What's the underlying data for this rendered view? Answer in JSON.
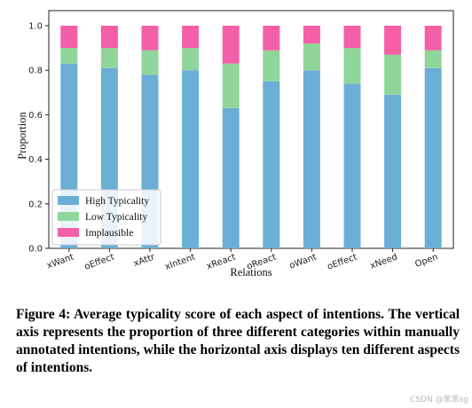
{
  "chart_data": {
    "type": "bar",
    "stacked": true,
    "categories": [
      "xWant",
      "oEffect",
      "xAttr",
      "xIntent",
      "xReact",
      "oReact",
      "oWant",
      "oEffect",
      "xNeed",
      "Open"
    ],
    "series": [
      {
        "name": "High Typicality",
        "color": "#6baed6",
        "values": [
          0.83,
          0.81,
          0.78,
          0.8,
          0.63,
          0.75,
          0.8,
          0.74,
          0.69,
          0.81
        ]
      },
      {
        "name": "Low Typicality",
        "color": "#90d59a",
        "values": [
          0.07,
          0.09,
          0.11,
          0.1,
          0.2,
          0.14,
          0.12,
          0.16,
          0.18,
          0.08
        ]
      },
      {
        "name": "Implausible",
        "color": "#f55fa8",
        "values": [
          0.1,
          0.1,
          0.11,
          0.1,
          0.17,
          0.11,
          0.08,
          0.1,
          0.13,
          0.11
        ]
      }
    ],
    "ylim": [
      0,
      1.0
    ],
    "yticks": [
      "0.0",
      "0.2",
      "0.4",
      "0.6",
      "0.8",
      "1.0"
    ],
    "xlabel": "Relations",
    "ylabel": "Proportion",
    "legend_position": "lower-left",
    "grid": false
  },
  "caption": "Figure 4: Average typicality score of each aspect of intentions. The vertical axis represents the proportion of three different categories within manually annotated intentions, while the horizontal axis displays ten different aspects of intentions.",
  "watermark": "CSDN @笨笨sg"
}
